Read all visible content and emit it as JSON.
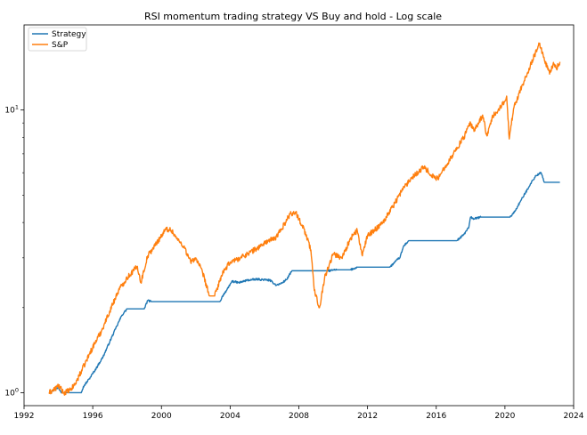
{
  "chart_data": {
    "type": "line",
    "title": "RSI momentum trading strategy VS Buy and hold - Log scale",
    "xlabel": "",
    "ylabel": "",
    "yscale": "log",
    "xlim": [
      1992,
      2024
    ],
    "ylim": [
      0.9,
      20
    ],
    "x_ticks": [
      "1992",
      "1996",
      "2000",
      "2004",
      "2008",
      "2012",
      "2016",
      "2020",
      "2024"
    ],
    "y_ticks": [
      {
        "value": 1,
        "label": "10^0"
      },
      {
        "value": 10,
        "label": "10^1"
      }
    ],
    "grid": false,
    "legend_position": "upper-left",
    "series": [
      {
        "name": "Strategy",
        "color": "#1f77b4",
        "points": [
          [
            1993.45,
            1.0
          ],
          [
            1993.7,
            1.02
          ],
          [
            1994.0,
            1.04
          ],
          [
            1994.2,
            1.0
          ],
          [
            1994.5,
            1.0
          ],
          [
            1995.3,
            1.0
          ],
          [
            1995.5,
            1.06
          ],
          [
            1995.8,
            1.12
          ],
          [
            1996.2,
            1.22
          ],
          [
            1996.6,
            1.34
          ],
          [
            1997.0,
            1.52
          ],
          [
            1997.4,
            1.72
          ],
          [
            1997.7,
            1.88
          ],
          [
            1998.0,
            1.98
          ],
          [
            1999.0,
            1.98
          ],
          [
            1999.2,
            2.12
          ],
          [
            1999.4,
            2.1
          ],
          [
            2000.0,
            2.1
          ],
          [
            2003.4,
            2.1
          ],
          [
            2003.6,
            2.22
          ],
          [
            2003.9,
            2.35
          ],
          [
            2004.1,
            2.48
          ],
          [
            2004.5,
            2.45
          ],
          [
            2005.0,
            2.5
          ],
          [
            2005.6,
            2.52
          ],
          [
            2006.3,
            2.5
          ],
          [
            2006.7,
            2.4
          ],
          [
            2007.0,
            2.44
          ],
          [
            2007.3,
            2.52
          ],
          [
            2007.6,
            2.7
          ],
          [
            2009.7,
            2.7
          ],
          [
            2010.2,
            2.72
          ],
          [
            2011.0,
            2.72
          ],
          [
            2011.4,
            2.78
          ],
          [
            2012.0,
            2.78
          ],
          [
            2013.3,
            2.78
          ],
          [
            2013.6,
            2.9
          ],
          [
            2013.9,
            3.02
          ],
          [
            2014.1,
            3.3
          ],
          [
            2014.4,
            3.45
          ],
          [
            2015.0,
            3.45
          ],
          [
            2017.2,
            3.45
          ],
          [
            2017.6,
            3.62
          ],
          [
            2017.9,
            3.85
          ],
          [
            2018.0,
            4.18
          ],
          [
            2018.2,
            4.12
          ],
          [
            2018.6,
            4.18
          ],
          [
            2020.3,
            4.18
          ],
          [
            2020.6,
            4.4
          ],
          [
            2020.9,
            4.75
          ],
          [
            2021.2,
            5.1
          ],
          [
            2021.5,
            5.5
          ],
          [
            2021.8,
            5.85
          ],
          [
            2022.1,
            6.0
          ],
          [
            2022.3,
            5.55
          ],
          [
            2022.5,
            5.55
          ],
          [
            2023.2,
            5.55
          ]
        ]
      },
      {
        "name": "S&P",
        "color": "#ff7f0e",
        "points": [
          [
            1993.45,
            1.0
          ],
          [
            1993.8,
            1.03
          ],
          [
            1994.0,
            1.06
          ],
          [
            1994.3,
            1.0
          ],
          [
            1994.7,
            1.02
          ],
          [
            1995.0,
            1.08
          ],
          [
            1995.5,
            1.25
          ],
          [
            1996.0,
            1.45
          ],
          [
            1996.5,
            1.65
          ],
          [
            1997.0,
            1.95
          ],
          [
            1997.5,
            2.3
          ],
          [
            1998.0,
            2.55
          ],
          [
            1998.6,
            2.8
          ],
          [
            1998.8,
            2.45
          ],
          [
            1999.2,
            3.05
          ],
          [
            1999.6,
            3.3
          ],
          [
            2000.0,
            3.6
          ],
          [
            2000.3,
            3.8
          ],
          [
            2000.6,
            3.75
          ],
          [
            2000.9,
            3.5
          ],
          [
            2001.3,
            3.3
          ],
          [
            2001.7,
            2.9
          ],
          [
            2002.0,
            3.0
          ],
          [
            2002.4,
            2.65
          ],
          [
            2002.8,
            2.2
          ],
          [
            2003.1,
            2.2
          ],
          [
            2003.5,
            2.6
          ],
          [
            2004.0,
            2.9
          ],
          [
            2004.6,
            3.0
          ],
          [
            2005.0,
            3.1
          ],
          [
            2005.6,
            3.25
          ],
          [
            2006.2,
            3.45
          ],
          [
            2006.6,
            3.5
          ],
          [
            2007.0,
            3.8
          ],
          [
            2007.5,
            4.3
          ],
          [
            2007.8,
            4.35
          ],
          [
            2008.3,
            3.8
          ],
          [
            2008.7,
            3.2
          ],
          [
            2008.9,
            2.3
          ],
          [
            2009.2,
            2.0
          ],
          [
            2009.5,
            2.55
          ],
          [
            2010.0,
            3.1
          ],
          [
            2010.5,
            3.0
          ],
          [
            2011.0,
            3.5
          ],
          [
            2011.4,
            3.75
          ],
          [
            2011.7,
            3.05
          ],
          [
            2012.0,
            3.6
          ],
          [
            2012.5,
            3.8
          ],
          [
            2013.0,
            4.1
          ],
          [
            2013.6,
            4.7
          ],
          [
            2014.0,
            5.2
          ],
          [
            2014.6,
            5.8
          ],
          [
            2015.3,
            6.3
          ],
          [
            2015.7,
            5.9
          ],
          [
            2016.1,
            5.7
          ],
          [
            2016.5,
            6.3
          ],
          [
            2017.0,
            7.0
          ],
          [
            2017.6,
            8.0
          ],
          [
            2018.0,
            9.0
          ],
          [
            2018.2,
            8.4
          ],
          [
            2018.7,
            9.6
          ],
          [
            2018.95,
            8.1
          ],
          [
            2019.3,
            9.5
          ],
          [
            2019.8,
            10.3
          ],
          [
            2020.1,
            11.2
          ],
          [
            2020.25,
            7.9
          ],
          [
            2020.5,
            10.1
          ],
          [
            2020.9,
            11.8
          ],
          [
            2021.3,
            13.5
          ],
          [
            2021.7,
            15.5
          ],
          [
            2022.0,
            17.2
          ],
          [
            2022.3,
            15.0
          ],
          [
            2022.6,
            13.4
          ],
          [
            2022.8,
            14.5
          ],
          [
            2023.0,
            14.0
          ],
          [
            2023.2,
            14.8
          ]
        ]
      }
    ]
  }
}
